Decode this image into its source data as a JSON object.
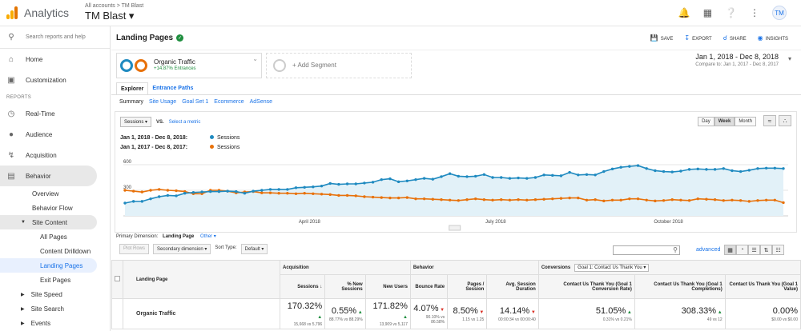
{
  "app": {
    "name": "Analytics",
    "breadcrumb": "All accounts > TM Blast",
    "property": "TM Blast ▾",
    "avatar": "TM"
  },
  "colors": {
    "blue": "#1f8ac0",
    "orange": "#e8710a",
    "accent": "#1a73e8",
    "green": "#1e8e3e",
    "red": "#d93025"
  },
  "sidebar": {
    "search": "Search reports and help",
    "home": "Home",
    "customization": "Customization",
    "reports_label": "REPORTS",
    "realtime": "Real-Time",
    "audience": "Audience",
    "acquisition": "Acquisition",
    "behavior": "Behavior",
    "overview": "Overview",
    "behavior_flow": "Behavior Flow",
    "site_content": "Site Content",
    "all_pages": "All Pages",
    "content_drilldown": "Content Drilldown",
    "landing_pages": "Landing Pages",
    "exit_pages": "Exit Pages",
    "site_speed": "Site Speed",
    "site_search": "Site Search",
    "events": "Events"
  },
  "header": {
    "title": "Landing Pages",
    "save": "SAVE",
    "export": "EXPORT",
    "share": "SHARE",
    "insights": "INSIGHTS"
  },
  "segment": {
    "name": "Organic Traffic",
    "pct": "+14.87% Entrances",
    "add": "+ Add Segment"
  },
  "daterange": {
    "primary": "Jan 1, 2018 - Dec 8, 2018",
    "compare": "Compare to: Jan 1, 2017 - Dec 8, 2017"
  },
  "tabs": {
    "explorer": "Explorer",
    "entrance_paths": "Entrance Paths"
  },
  "subtabs": [
    "Summary",
    "Site Usage",
    "Goal Set 1",
    "Ecommerce",
    "AdSense"
  ],
  "chart_controls": {
    "metric": "Sessions ▾",
    "vs": "VS.",
    "select": "Select a metric",
    "day": "Day",
    "week": "Week",
    "month": "Month"
  },
  "chart_data": {
    "type": "line",
    "ylim": [
      0,
      600
    ],
    "yticks": [
      300,
      600
    ],
    "x_tick_labels": [
      "April 2018",
      "July 2018",
      "October 2018"
    ],
    "series": [
      {
        "name": "Sessions",
        "range": "Jan 1, 2018 - Dec 8, 2018:",
        "color": "#1f8ac0",
        "values": [
          150,
          170,
          170,
          200,
          225,
          240,
          235,
          265,
          275,
          280,
          285,
          285,
          290,
          285,
          265,
          290,
          300,
          310,
          310,
          310,
          330,
          335,
          340,
          350,
          380,
          370,
          375,
          375,
          385,
          395,
          425,
          435,
          400,
          410,
          425,
          440,
          430,
          460,
          495,
          465,
          460,
          465,
          485,
          450,
          450,
          440,
          445,
          440,
          450,
          480,
          475,
          470,
          510,
          480,
          485,
          480,
          520,
          550,
          570,
          580,
          590,
          555,
          530,
          520,
          515,
          525,
          545,
          550,
          545,
          545,
          555,
          530,
          520,
          535,
          555,
          560,
          560,
          555
        ]
      },
      {
        "name": "Sessions",
        "range": "Jan 1, 2017 - Dec 8, 2017:",
        "color": "#e8710a",
        "values": [
          300,
          290,
          280,
          300,
          310,
          300,
          295,
          285,
          260,
          260,
          300,
          300,
          290,
          270,
          280,
          285,
          270,
          270,
          265,
          265,
          260,
          265,
          260,
          255,
          250,
          240,
          240,
          235,
          225,
          220,
          215,
          210,
          210,
          215,
          200,
          200,
          195,
          190,
          185,
          180,
          190,
          200,
          190,
          185,
          190,
          185,
          190,
          185,
          190,
          195,
          200,
          205,
          210,
          210,
          185,
          190,
          175,
          185,
          185,
          200,
          200,
          185,
          175,
          180,
          190,
          185,
          180,
          200,
          195,
          190,
          180,
          185,
          180,
          170,
          180,
          185,
          185,
          155
        ]
      }
    ]
  },
  "table": {
    "primary_dimension": "Primary Dimension:",
    "dimension": "Landing Page",
    "other": "Other ▾",
    "plot_rows": "Plot Rows",
    "secondary": "Secondary dimension ▾",
    "sort_type_label": "Sort Type:",
    "sort_type": "Default ▾",
    "advanced": "advanced",
    "groups": {
      "acquisition": "Acquisition",
      "behavior": "Behavior",
      "conversions": "Conversions",
      "goal": "Goal 1: Contact Us Thank You ▾"
    },
    "headers": [
      "Landing Page",
      "Sessions",
      "% New Sessions",
      "New Users",
      "Bounce Rate",
      "Pages / Session",
      "Avg. Session Duration",
      "Contact Us Thank You (Goal 1 Conversion Rate)",
      "Contact Us Thank You (Goal 1 Completions)",
      "Contact Us Thank You (Goal 1 Value)"
    ],
    "row": {
      "label": "Organic Traffic",
      "cells": [
        {
          "v": "170.32%",
          "s": "15,668 vs 5,796",
          "dir": "up"
        },
        {
          "v": "0.55%",
          "s": "88.77% vs 88.29%",
          "dir": "up"
        },
        {
          "v": "171.82%",
          "s": "13,909 vs 5,117",
          "dir": "up"
        },
        {
          "v": "4.07%",
          "s": "90.10% vs 86.58%",
          "dir": "dn"
        },
        {
          "v": "8.50%",
          "s": "1.15 vs 1.25",
          "dir": "dn"
        },
        {
          "v": "14.14%",
          "s": "00:00:34 vs 00:00:40",
          "dir": "dn"
        },
        {
          "v": "51.05%",
          "s": "0.31% vs 0.21%",
          "dir": "up"
        },
        {
          "v": "308.33%",
          "s": "49 vs 12",
          "dir": "up"
        },
        {
          "v": "0.00%",
          "s": "$0.00 vs $0.00",
          "dir": ""
        }
      ]
    }
  }
}
